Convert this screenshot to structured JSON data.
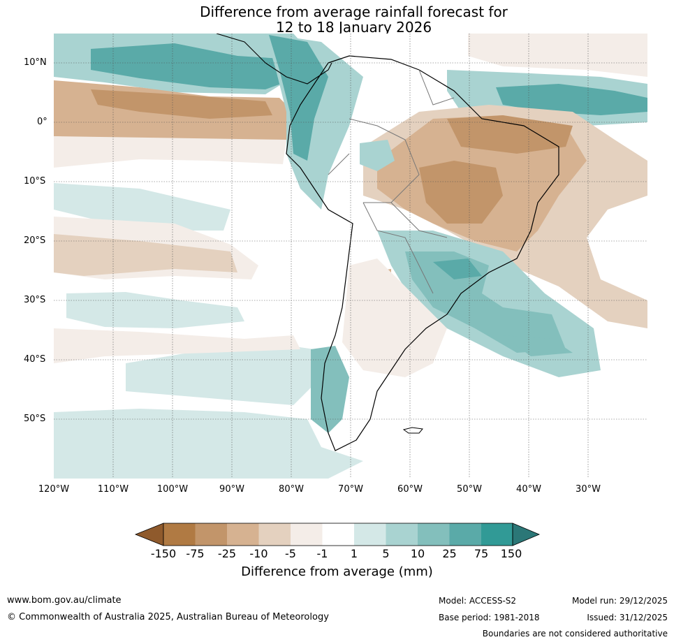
{
  "title": {
    "line1": "Difference from average rainfall forecast for",
    "line2": "12 to 18 January 2026"
  },
  "map": {
    "region": "South America",
    "lat_labels": [
      "10°N",
      "0°",
      "10°S",
      "20°S",
      "30°S",
      "40°S",
      "50°S"
    ],
    "lon_labels": [
      "120°W",
      "110°W",
      "100°W",
      "90°W",
      "80°W",
      "70°W",
      "60°W",
      "50°W",
      "40°W",
      "30°W"
    ]
  },
  "legend": {
    "title": "Difference from average (mm)",
    "ticks": [
      "-150",
      "-75",
      "-25",
      "-10",
      "-5",
      "-1",
      "1",
      "5",
      "10",
      "25",
      "75",
      "150"
    ],
    "colors": {
      "below_150": "#8f5a2c",
      "m150_m75": "#b07a43",
      "m75_m25": "#c2956a",
      "m25_m10": "#d6b291",
      "m10_m5": "#e4d1bf",
      "m5_m1": "#f4ede8",
      "m1_p1": "#ffffff",
      "p1_p5": "#d4e8e7",
      "p5_p10": "#a9d3d1",
      "p10_p25": "#83bfbc",
      "p25_p75": "#5aaaa8",
      "p75_p150": "#319a96",
      "above_150": "#2b7777"
    }
  },
  "footer": {
    "website": "www.bom.gov.au/climate",
    "copyright": "© Commonwealth of Australia 2025, Australian Bureau of Meteorology",
    "model": "Model: ACCESS-S2",
    "base_period": "Base period: 1981-2018",
    "model_run": "Model run: 29/12/2025",
    "issued": "Issued: 31/12/2025",
    "disclaimer": "Boundaries are not considered authoritative"
  }
}
